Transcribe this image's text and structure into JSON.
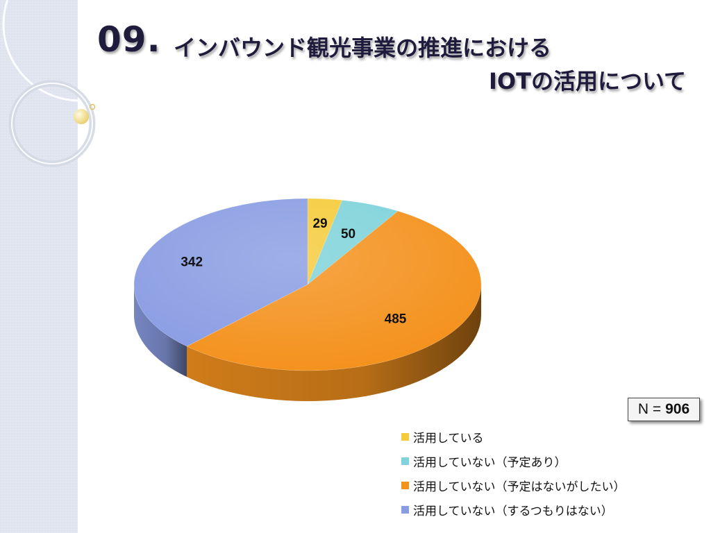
{
  "title": {
    "number": "09.",
    "line1": "インバウンド観光事業の推進における",
    "line2": "IOTの活用について"
  },
  "n_box": {
    "prefix": "N =",
    "value": "906"
  },
  "colors": {
    "sidebar": "#e1e6f1",
    "slice_yellow": "#f5cb3b",
    "slice_teal": "#7fd3da",
    "slice_orange": "#f4921e",
    "slice_blue": "#8a9de3"
  },
  "chart_data": {
    "type": "pie",
    "style": "3d-tilted",
    "total": 906,
    "slices": [
      {
        "label": "活用している",
        "value": 29,
        "color": "#f5cb3b"
      },
      {
        "label": "活用していない（予定あり）",
        "value": 50,
        "color": "#7fd3da"
      },
      {
        "label": "活用していない（予定はないがしたい）",
        "value": 485,
        "color": "#f4921e"
      },
      {
        "label": "活用していない（するつもりはない）",
        "value": 342,
        "color": "#8a9de3"
      }
    ],
    "data_labels": [
      "29",
      "50",
      "485",
      "342"
    ],
    "legend_position": "bottom-right"
  }
}
